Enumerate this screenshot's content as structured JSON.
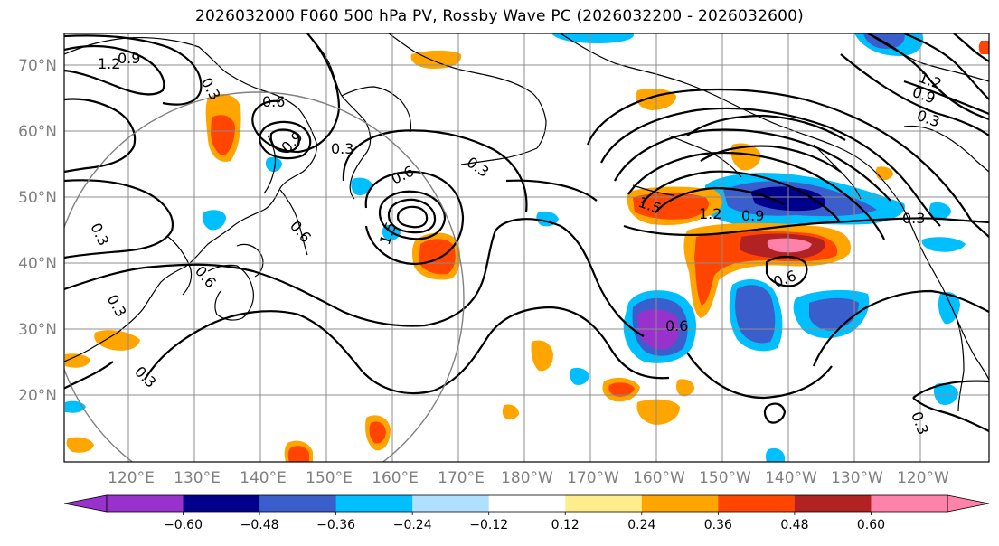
{
  "title": "2026032000 F060 500 hPa PV, Rossby Wave PC (2026032200 - 2026032600)",
  "map": {
    "lat_ticks": [
      "70°N",
      "60°N",
      "50°N",
      "40°N",
      "30°N",
      "20°N"
    ],
    "lon_ticks": [
      "120°E",
      "130°E",
      "140°E",
      "150°E",
      "160°E",
      "170°E",
      "180°W",
      "170°W",
      "160°W",
      "150°W",
      "140°W",
      "130°W",
      "120°W"
    ],
    "contour_labels": [
      "1.2",
      "0.9",
      "0.3",
      "0.6",
      "0.9",
      "0.3",
      "0.6",
      "0.3",
      "0.3",
      "0.6",
      "0.6",
      "0.3",
      "0.3",
      "1.5",
      "1.2",
      "0.9",
      "0.3",
      "0.6",
      "0.6",
      "1.2",
      "0.9",
      "0.3",
      "0.3",
      "1.5"
    ]
  },
  "colorbar": {
    "colors": [
      "#9932CC",
      "#00008B",
      "#3A5FCD",
      "#00BFFF",
      "#B0E0FF",
      "#FFFFFF",
      "#FFEC8B",
      "#FFA500",
      "#FF4500",
      "#B22222",
      "#FF82AB"
    ],
    "labels": [
      "−0.60",
      "−0.48",
      "−0.36",
      "−0.24",
      "−0.12",
      "0.12",
      "0.24",
      "0.36",
      "0.48",
      "0.60"
    ]
  }
}
